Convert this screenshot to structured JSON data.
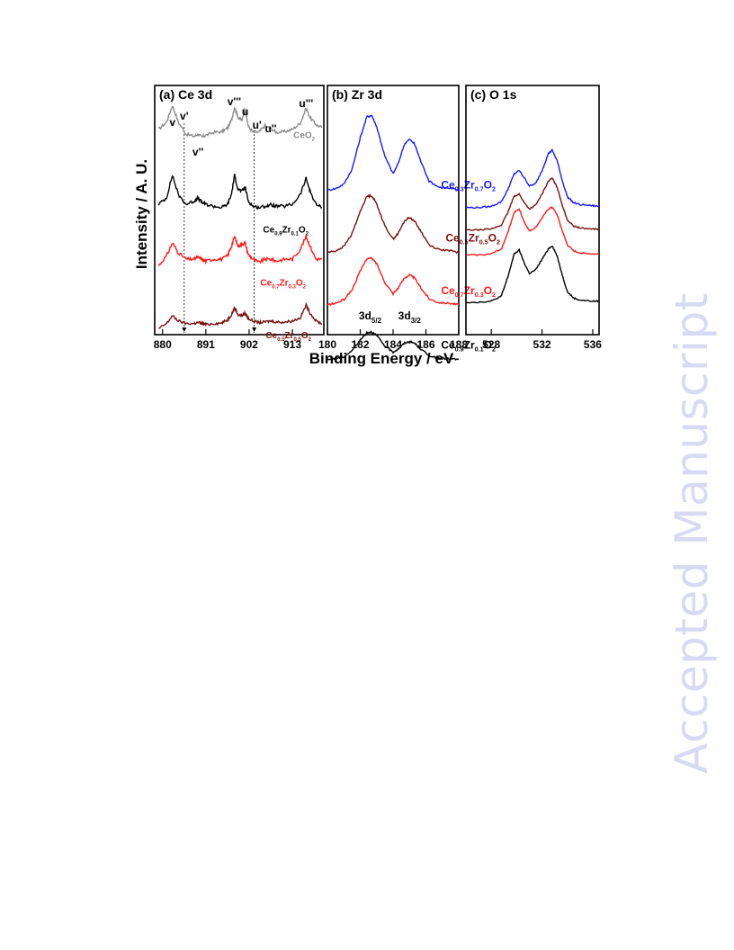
{
  "watermark": "Accepted Manuscript",
  "figure": {
    "ylabel": "Intensity / A. U.",
    "xlabel": "Binding Energy / eV"
  },
  "chart_data": [
    {
      "type": "line",
      "panel_label": "(a) Ce 3d",
      "xlim": [
        878,
        921
      ],
      "xticks": [
        880,
        891,
        902,
        913
      ],
      "grid": false,
      "peak_labels": [
        {
          "text": "v",
          "x": 882.5
        },
        {
          "text": "v'",
          "x": 885.5
        },
        {
          "text": "v''",
          "x": 889.0
        },
        {
          "text": "v'''",
          "x": 898.2
        },
        {
          "text": "u",
          "x": 901.0
        },
        {
          "text": "u'",
          "x": 904.0
        },
        {
          "text": "u''",
          "x": 907.5
        },
        {
          "text": "u'''",
          "x": 916.5
        }
      ],
      "reference_lines_x": [
        885.5,
        903.3
      ],
      "series": [
        {
          "name": "CeO2",
          "color": "#8c8c8c",
          "x": [
            879,
            881,
            882.5,
            884,
            886,
            888,
            889,
            890,
            891,
            893,
            895,
            896.5,
            897.5,
            898.3,
            899.2,
            900.2,
            901,
            901.8,
            903,
            904.5,
            906,
            907.5,
            909,
            911,
            913,
            915,
            916.5,
            917.5,
            919,
            920.5
          ],
          "y": [
            0.6,
            0.72,
            1.0,
            0.72,
            0.52,
            0.48,
            0.52,
            0.47,
            0.5,
            0.55,
            0.56,
            0.62,
            0.75,
            0.97,
            0.8,
            0.75,
            0.94,
            0.65,
            0.55,
            0.55,
            0.66,
            0.61,
            0.55,
            0.56,
            0.6,
            0.7,
            0.95,
            0.8,
            0.68,
            0.63
          ]
        },
        {
          "name": "Ce0.9Zr0.1O2",
          "color": "#000000",
          "x": [
            879,
            881,
            882.5,
            884,
            886,
            888,
            889,
            890,
            891,
            893,
            895,
            896.5,
            897.5,
            898.3,
            899.2,
            900.2,
            901,
            901.8,
            903,
            904.5,
            906,
            907.5,
            909,
            911,
            913,
            915,
            916.5,
            917.5,
            919,
            920.5
          ],
          "y": [
            0.55,
            0.65,
            1.0,
            0.7,
            0.55,
            0.6,
            0.65,
            0.58,
            0.55,
            0.52,
            0.5,
            0.55,
            0.7,
            1.0,
            0.78,
            0.75,
            0.82,
            0.6,
            0.52,
            0.5,
            0.52,
            0.54,
            0.52,
            0.52,
            0.55,
            0.7,
            0.95,
            0.75,
            0.55,
            0.5
          ]
        },
        {
          "name": "Ce0.7Zr0.3O2",
          "color": "#ff1a1a",
          "x": [
            879,
            881,
            882.5,
            884,
            886,
            888,
            889,
            890,
            891,
            893,
            895,
            896.5,
            897.5,
            898.3,
            899.2,
            900.2,
            901,
            901.8,
            903,
            904.5,
            906,
            907.5,
            909,
            911,
            913,
            915,
            916.5,
            917.5,
            919,
            920.5
          ],
          "y": [
            0.45,
            0.6,
            0.8,
            0.65,
            0.55,
            0.55,
            0.58,
            0.55,
            0.52,
            0.55,
            0.55,
            0.6,
            0.75,
            0.9,
            0.75,
            0.78,
            0.8,
            0.62,
            0.55,
            0.5,
            0.55,
            0.55,
            0.52,
            0.55,
            0.55,
            0.7,
            0.9,
            0.75,
            0.55,
            0.55
          ]
        },
        {
          "name": "Ce0.5Zr0.5O2",
          "color": "#7a1010",
          "x": [
            879,
            881,
            882.5,
            884,
            886,
            888,
            889,
            890,
            891,
            893,
            895,
            896.5,
            897.5,
            898.3,
            899.2,
            900.2,
            901,
            901.8,
            903,
            904.5,
            906,
            907.5,
            909,
            911,
            913,
            915,
            916.5,
            917.5,
            919,
            920.5
          ],
          "y": [
            0.35,
            0.45,
            0.6,
            0.5,
            0.45,
            0.45,
            0.47,
            0.45,
            0.43,
            0.45,
            0.46,
            0.52,
            0.62,
            0.75,
            0.62,
            0.6,
            0.65,
            0.55,
            0.5,
            0.47,
            0.48,
            0.5,
            0.48,
            0.48,
            0.5,
            0.56,
            0.8,
            0.65,
            0.5,
            0.45
          ]
        }
      ]
    },
    {
      "type": "line",
      "panel_label": "(b) Zr 3d",
      "xlim": [
        180,
        188
      ],
      "xticks": [
        180,
        182,
        184,
        186,
        188
      ],
      "grid": false,
      "peak_labels": [
        {
          "text": "3d5/2",
          "x": 182.6
        },
        {
          "text": "3d3/2",
          "x": 185.0
        }
      ],
      "series": [
        {
          "name": "Ce0.3Zr0.7O2",
          "color": "#1a1aff",
          "x": [
            180,
            180.5,
            181,
            181.5,
            182,
            182.4,
            182.7,
            183,
            183.5,
            184,
            184.3,
            184.7,
            185,
            185.3,
            185.7,
            186.2,
            186.8,
            187.5,
            188
          ],
          "y": [
            0.0,
            0.02,
            0.08,
            0.28,
            0.7,
            0.98,
            1.0,
            0.85,
            0.45,
            0.22,
            0.35,
            0.62,
            0.68,
            0.62,
            0.38,
            0.12,
            0.04,
            0.02,
            0.0
          ]
        },
        {
          "name": "Ce0.5Zr0.5O2",
          "color": "#7a1010",
          "x": [
            180,
            180.5,
            181,
            181.5,
            182,
            182.4,
            182.7,
            183,
            183.5,
            184,
            184.3,
            184.7,
            185,
            185.3,
            185.7,
            186.2,
            186.8,
            187.5,
            188
          ],
          "y": [
            0.0,
            0.02,
            0.08,
            0.25,
            0.55,
            0.75,
            0.76,
            0.65,
            0.35,
            0.18,
            0.25,
            0.42,
            0.47,
            0.42,
            0.28,
            0.1,
            0.04,
            0.02,
            0.0
          ]
        },
        {
          "name": "Ce0.7Zr0.3O2",
          "color": "#ff1a1a",
          "x": [
            180,
            180.5,
            181,
            181.5,
            182,
            182.4,
            182.7,
            183,
            183.5,
            184,
            184.3,
            184.7,
            185,
            185.3,
            185.7,
            186.2,
            186.8,
            187.5,
            188
          ],
          "y": [
            0.0,
            0.02,
            0.07,
            0.2,
            0.45,
            0.62,
            0.62,
            0.55,
            0.3,
            0.15,
            0.22,
            0.36,
            0.4,
            0.36,
            0.22,
            0.08,
            0.03,
            0.02,
            0.0
          ]
        },
        {
          "name": "Ce0.9Zr0.1O2",
          "color": "#000000",
          "x": [
            180,
            180.5,
            181,
            181.5,
            182,
            182.4,
            182.7,
            183,
            183.5,
            184,
            184.3,
            184.7,
            185,
            185.3,
            185.7,
            186.2,
            186.8,
            187.5,
            188
          ],
          "y": [
            0.0,
            0.01,
            0.04,
            0.12,
            0.26,
            0.36,
            0.37,
            0.32,
            0.18,
            0.1,
            0.14,
            0.22,
            0.24,
            0.22,
            0.14,
            0.05,
            0.02,
            0.01,
            0.0
          ]
        }
      ]
    },
    {
      "type": "line",
      "panel_label": "(c) O 1s",
      "xlim": [
        526,
        536.5
      ],
      "xticks": [
        528,
        532,
        536
      ],
      "grid": false,
      "series": [
        {
          "name": "Ce0.3Zr0.7O2",
          "color": "#1a1aff",
          "x": [
            526,
            527,
            528,
            528.8,
            529.3,
            529.8,
            530.2,
            530.6,
            531,
            531.5,
            532,
            532.5,
            532.8,
            533.2,
            533.6,
            534,
            534.5,
            535,
            536,
            536.5
          ],
          "y": [
            0.0,
            0.0,
            0.02,
            0.1,
            0.3,
            0.56,
            0.62,
            0.5,
            0.36,
            0.4,
            0.62,
            0.9,
            0.96,
            0.78,
            0.45,
            0.18,
            0.08,
            0.05,
            0.03,
            0.02
          ]
        },
        {
          "name": "Ce0.5Zr0.5O2",
          "color": "#7a1010",
          "x": [
            526,
            527,
            528,
            528.8,
            529.3,
            529.8,
            530.2,
            530.6,
            531,
            531.5,
            532,
            532.5,
            532.8,
            533.2,
            533.6,
            534,
            534.5,
            535,
            536,
            536.5
          ],
          "y": [
            0.0,
            0.0,
            0.02,
            0.1,
            0.35,
            0.68,
            0.72,
            0.55,
            0.42,
            0.5,
            0.72,
            0.98,
            1.04,
            0.85,
            0.5,
            0.2,
            0.08,
            0.04,
            0.02,
            0.02
          ]
        },
        {
          "name": "Ce0.7Zr0.3O2",
          "color": "#ff1a1a",
          "x": [
            526,
            527,
            528,
            528.8,
            529.3,
            529.8,
            530.2,
            530.6,
            531,
            531.5,
            532,
            532.5,
            532.8,
            533.2,
            533.6,
            534,
            534.5,
            535,
            536,
            536.5
          ],
          "y": [
            0.0,
            0.0,
            0.02,
            0.12,
            0.45,
            0.85,
            0.92,
            0.66,
            0.48,
            0.55,
            0.74,
            0.92,
            0.96,
            0.8,
            0.48,
            0.2,
            0.08,
            0.04,
            0.02,
            0.02
          ]
        },
        {
          "name": "Ce0.9Zr0.1O2",
          "color": "#000000",
          "x": [
            526,
            527,
            528,
            528.8,
            529.3,
            529.8,
            530.2,
            530.6,
            531,
            531.5,
            532,
            532.5,
            532.8,
            533.2,
            533.6,
            534,
            534.5,
            535,
            536,
            536.5
          ],
          "y": [
            0.0,
            0.0,
            0.02,
            0.12,
            0.48,
            0.92,
            1.0,
            0.75,
            0.55,
            0.62,
            0.82,
            1.02,
            1.08,
            0.88,
            0.52,
            0.2,
            0.08,
            0.04,
            0.02,
            0.02
          ]
        }
      ]
    }
  ]
}
